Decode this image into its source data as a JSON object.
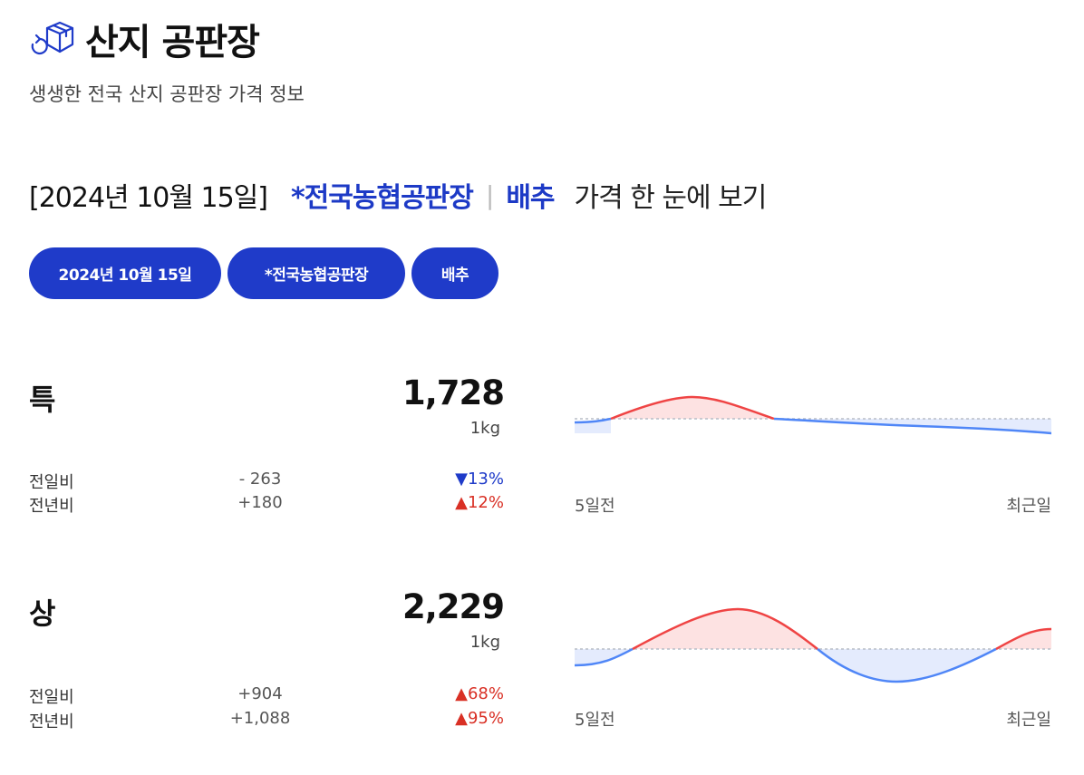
{
  "header": {
    "icon": "box-return-icon",
    "title": "산지 공판장",
    "subtitle": "생생한 전국 산지 공판장 가격 정보"
  },
  "headline": {
    "date": "[2024년 10월 15일]",
    "market": "*전국농협공판장",
    "separator": "|",
    "item": "배추",
    "tail": "가격 한 눈에 보기"
  },
  "filters": {
    "date": "2024년 10월 15일",
    "market": "*전국농협공판장",
    "item": "배추"
  },
  "colors": {
    "accent": "#1f3bc9",
    "up": "#d93025",
    "down": "#1f3bc9",
    "line_up": "#ef4444",
    "line_down": "#4f86f7"
  },
  "grades": [
    {
      "grade": "특",
      "price": "1,728",
      "unit": "1kg",
      "day_label": "전일비",
      "day_diff": "- 263",
      "day_rate": "▼13%",
      "year_label": "전년비",
      "year_diff": "+180",
      "year_rate": "▲12%",
      "chart_start": "5일전",
      "chart_end": "최근일"
    },
    {
      "grade": "상",
      "price": "2,229",
      "unit": "1kg",
      "day_label": "전일비",
      "day_diff": "+904",
      "day_rate": "▲68%",
      "year_label": "전년비",
      "year_diff": "+1,088",
      "year_rate": "▲95%",
      "chart_start": "5일전",
      "chart_end": "최근일"
    }
  ]
}
